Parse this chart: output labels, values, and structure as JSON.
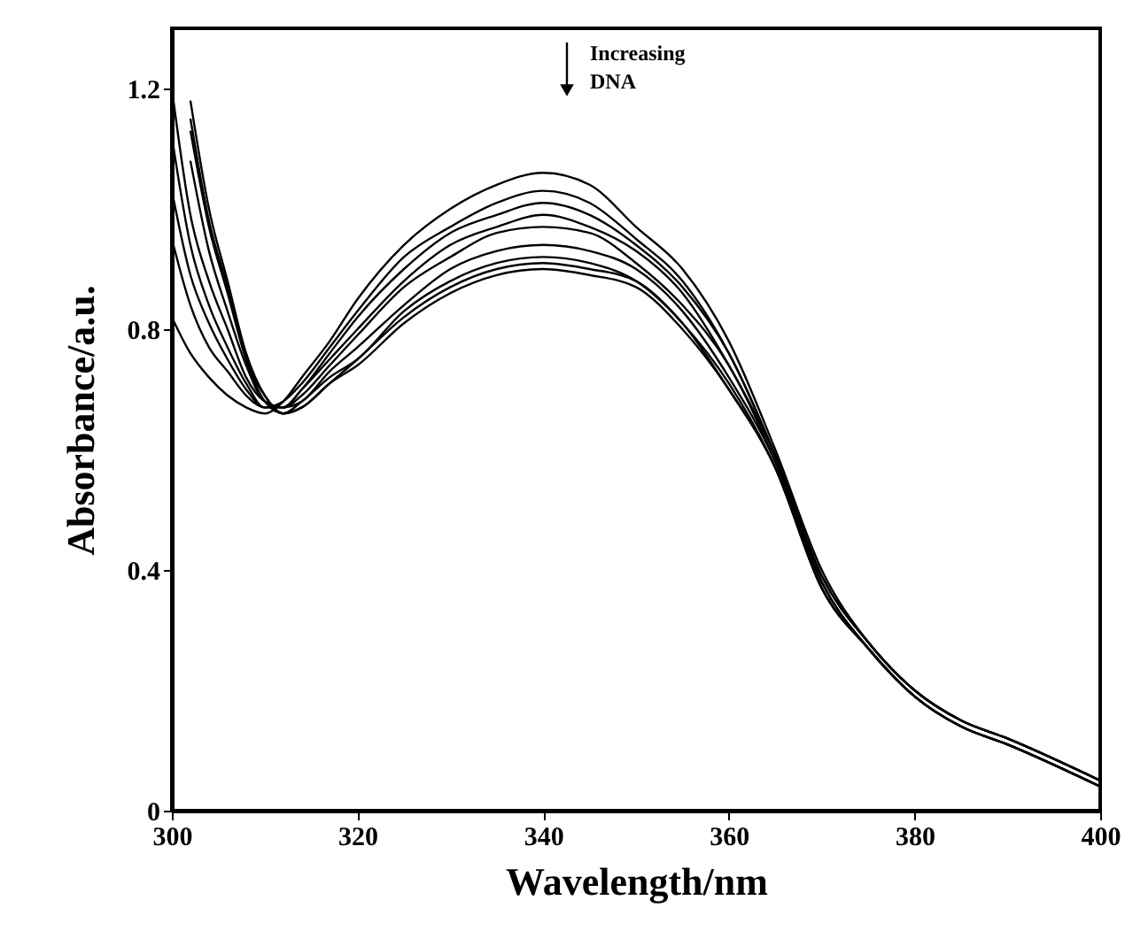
{
  "chart_data": {
    "type": "line",
    "xlabel": "Wavelength/nm",
    "ylabel": "Absorbance/a.u.",
    "annotations": [
      "Increasing DNA"
    ],
    "x": [
      300,
      302,
      304,
      306,
      308,
      310,
      312,
      314,
      317,
      320,
      325,
      330,
      335,
      340,
      345,
      350,
      355,
      360,
      365,
      370,
      375,
      380,
      385,
      390,
      400
    ],
    "series": [
      {
        "color": "#000000",
        "values": [
          0.82,
          0.76,
          0.72,
          0.69,
          0.67,
          0.66,
          0.68,
          0.72,
          0.78,
          0.85,
          0.94,
          1.0,
          1.04,
          1.06,
          1.04,
          0.97,
          0.9,
          0.78,
          0.6,
          0.4,
          0.28,
          0.2,
          0.15,
          0.12,
          0.05
        ]
      },
      {
        "color": "#000000",
        "values": [
          0.95,
          0.84,
          0.77,
          0.73,
          0.69,
          0.67,
          0.68,
          0.71,
          0.77,
          0.83,
          0.92,
          0.97,
          1.01,
          1.03,
          1.01,
          0.95,
          0.88,
          0.76,
          0.59,
          0.39,
          0.28,
          0.2,
          0.15,
          0.12,
          0.05
        ]
      },
      {
        "color": "#000000",
        "values": [
          1.03,
          0.89,
          0.81,
          0.75,
          0.7,
          0.67,
          0.67,
          0.7,
          0.76,
          0.82,
          0.9,
          0.96,
          0.99,
          1.01,
          0.99,
          0.94,
          0.87,
          0.76,
          0.59,
          0.39,
          0.28,
          0.2,
          0.15,
          0.12,
          0.05
        ]
      },
      {
        "color": "#000000",
        "values": [
          1.12,
          0.94,
          0.84,
          0.77,
          0.71,
          0.67,
          0.67,
          0.7,
          0.75,
          0.8,
          0.88,
          0.94,
          0.97,
          0.99,
          0.97,
          0.93,
          0.86,
          0.74,
          0.59,
          0.39,
          0.28,
          0.2,
          0.15,
          0.12,
          0.05
        ]
      },
      {
        "color": "#000000",
        "values": [
          1.2,
          0.99,
          0.88,
          0.8,
          0.72,
          0.68,
          0.67,
          0.69,
          0.74,
          0.79,
          0.87,
          0.92,
          0.96,
          0.97,
          0.96,
          0.91,
          0.84,
          0.74,
          0.58,
          0.38,
          0.27,
          0.19,
          0.14,
          0.11,
          0.04
        ]
      },
      {
        "color": "#000000",
        "values": [
          null,
          1.08,
          0.93,
          0.83,
          0.74,
          0.68,
          0.67,
          0.68,
          0.73,
          0.77,
          0.84,
          0.9,
          0.93,
          0.94,
          0.93,
          0.9,
          0.83,
          0.72,
          0.58,
          0.38,
          0.27,
          0.19,
          0.14,
          0.11,
          0.04
        ]
      },
      {
        "color": "#000000",
        "values": [
          null,
          1.13,
          0.97,
          0.86,
          0.75,
          0.68,
          0.66,
          0.68,
          0.72,
          0.75,
          0.83,
          0.88,
          0.91,
          0.92,
          0.91,
          0.88,
          0.81,
          0.71,
          0.57,
          0.37,
          0.27,
          0.19,
          0.14,
          0.11,
          0.04
        ]
      },
      {
        "color": "#000000",
        "values": [
          null,
          1.15,
          0.98,
          0.87,
          0.75,
          0.69,
          0.66,
          0.67,
          0.71,
          0.75,
          0.82,
          0.87,
          0.9,
          0.91,
          0.9,
          0.88,
          0.81,
          0.7,
          0.57,
          0.37,
          0.27,
          0.19,
          0.14,
          0.11,
          0.04
        ]
      },
      {
        "color": "#000000",
        "values": [
          null,
          1.18,
          1.0,
          0.88,
          0.76,
          0.69,
          0.66,
          0.67,
          0.71,
          0.74,
          0.81,
          0.86,
          0.89,
          0.9,
          0.89,
          0.87,
          0.8,
          0.7,
          0.57,
          0.37,
          0.27,
          0.19,
          0.14,
          0.11,
          0.04
        ]
      }
    ],
    "xlim": [
      300,
      400
    ],
    "xticks": [
      300,
      320,
      340,
      360,
      380,
      400
    ],
    "ylim": [
      0,
      1.3
    ],
    "yticks": [
      0,
      0.4,
      0.8,
      1.2
    ],
    "grid": false,
    "marker": "none",
    "line_style": "solid"
  }
}
